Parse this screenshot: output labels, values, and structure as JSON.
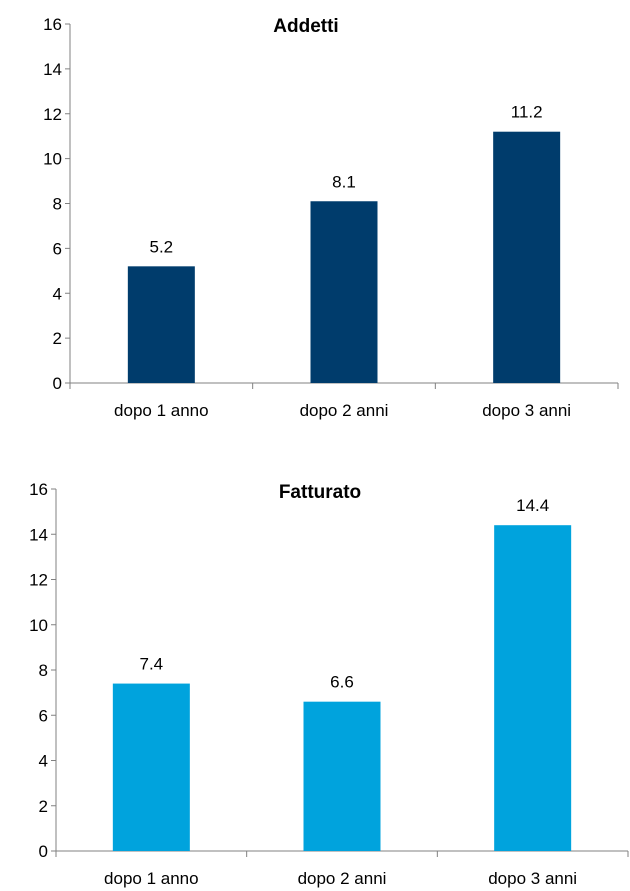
{
  "chart_data": [
    {
      "type": "bar",
      "title": "Addetti",
      "categories": [
        "dopo 1 anno",
        "dopo 2 anni",
        "dopo 3 anni"
      ],
      "values": [
        5.2,
        8.1,
        11.2
      ],
      "value_labels": [
        "5.2",
        "8.1",
        "11.2"
      ],
      "yticks": [
        "0",
        "2",
        "4",
        "6",
        "8",
        "10",
        "12",
        "14",
        "16"
      ],
      "ylim": [
        0,
        16
      ],
      "grid": false,
      "legend": "none",
      "color": "#003c6c"
    },
    {
      "type": "bar",
      "title": "Fatturato",
      "categories": [
        "dopo 1 anno",
        "dopo 2 anni",
        "dopo 3 anni"
      ],
      "values": [
        7.4,
        6.6,
        14.4
      ],
      "value_labels": [
        "7.4",
        "6.6",
        "14.4"
      ],
      "yticks": [
        "0",
        "2",
        "4",
        "6",
        "8",
        "10",
        "12",
        "14",
        "16"
      ],
      "ylim": [
        0,
        16
      ],
      "grid": false,
      "legend": "none",
      "color": "#00a3dd"
    }
  ]
}
